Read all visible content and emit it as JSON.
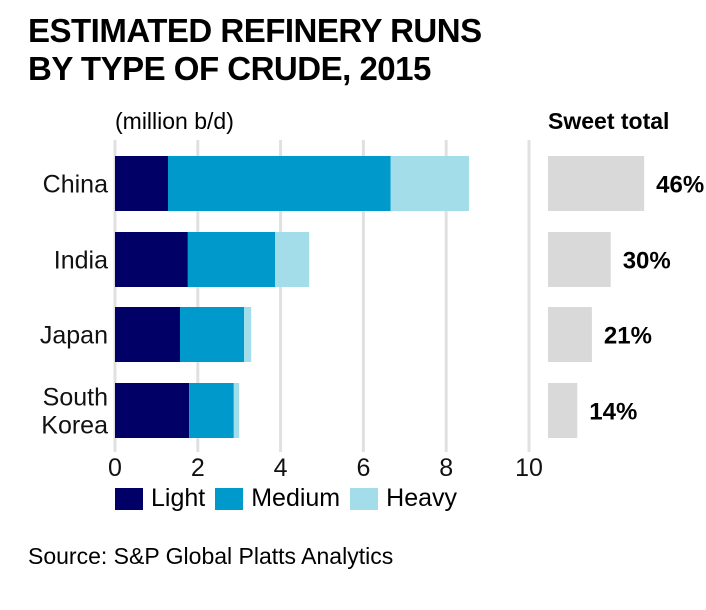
{
  "chart_data": {
    "type": "bar",
    "orientation": "horizontal",
    "stacked": true,
    "title": "ESTIMATED REFINERY RUNS BY TYPE OF CRUDE, 2015",
    "unit_label": "(million b/d)",
    "xlabel": "",
    "ylabel": "",
    "xlim": [
      0,
      10
    ],
    "xticks": [
      0,
      2,
      4,
      6,
      8,
      10
    ],
    "grid": true,
    "categories": [
      "China",
      "India",
      "Japan",
      "South Korea"
    ],
    "category_lines": [
      [
        "China"
      ],
      [
        "India"
      ],
      [
        "Japan"
      ],
      [
        "South",
        "Korea"
      ]
    ],
    "series": [
      {
        "name": "Light",
        "color": "#000066",
        "values": [
          1.28,
          1.76,
          1.57,
          1.79
        ]
      },
      {
        "name": "Medium",
        "color": "#0099CC",
        "values": [
          5.38,
          2.11,
          1.55,
          1.08
        ]
      },
      {
        "name": "Heavy",
        "color": "#A3DDEA",
        "values": [
          1.89,
          0.82,
          0.17,
          0.13
        ]
      }
    ],
    "legend_position": "bottom",
    "side_panel": {
      "title": "Sweet total",
      "color": "#D9D9D9",
      "values": [
        46,
        30,
        21,
        14
      ],
      "labels": [
        "46%",
        "30%",
        "21%",
        "14%"
      ]
    }
  },
  "source": "Source: S&P Global Platts Analytics"
}
